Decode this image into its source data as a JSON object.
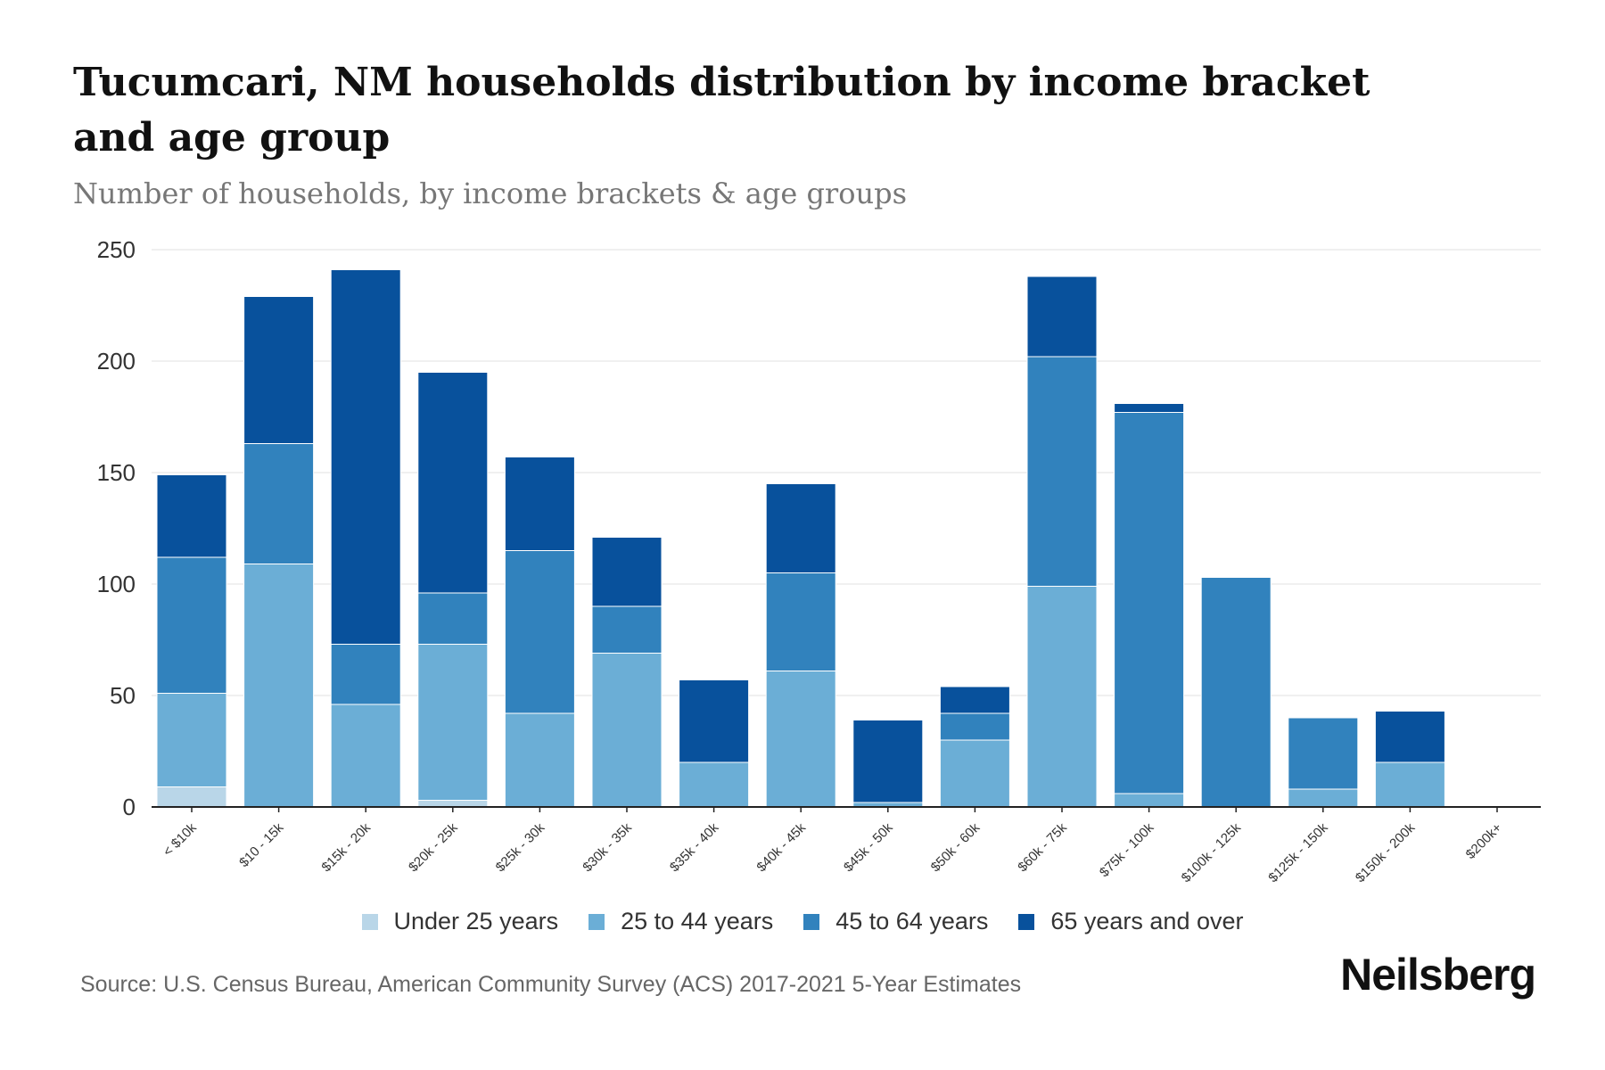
{
  "header": {
    "title": "Tucumcari, NM households distribution by income bracket and age group",
    "subtitle": "Number of households, by income brackets & age groups"
  },
  "footer": {
    "source": "Source: U.S. Census Bureau, American Community Survey (ACS) 2017-2021 5-Year Estimates",
    "brand": "Neilsberg"
  },
  "chart_data": {
    "type": "bar",
    "stacked": true,
    "title": "Tucumcari, NM households distribution by income bracket and age group",
    "subtitle": "Number of households, by income brackets & age groups",
    "xlabel": "",
    "ylabel": "",
    "ylim": [
      0,
      250
    ],
    "yticks": [
      0,
      50,
      100,
      150,
      200,
      250
    ],
    "grid": true,
    "legend_position": "bottom",
    "categories": [
      "< $10k",
      "$10 - 15k",
      "$15k - 20k",
      "$20k - 25k",
      "$25k - 30k",
      "$30k - 35k",
      "$35k - 40k",
      "$40k - 45k",
      "$45k - 50k",
      "$50k - 60k",
      "$60k - 75k",
      "$75k - 100k",
      "$100k - 125k",
      "$125k - 150k",
      "$150k - 200k",
      "$200k+"
    ],
    "series": [
      {
        "name": "Under 25 years",
        "color": "#b9d6e8",
        "values": [
          9,
          0,
          0,
          3,
          0,
          0,
          0,
          0,
          0,
          0,
          0,
          0,
          0,
          0,
          0,
          0
        ]
      },
      {
        "name": "25 to 44 years",
        "color": "#6baed6",
        "values": [
          42,
          109,
          46,
          70,
          42,
          69,
          20,
          61,
          2,
          30,
          99,
          6,
          0,
          8,
          20,
          0
        ]
      },
      {
        "name": "45 to 64 years",
        "color": "#3182bd",
        "values": [
          61,
          54,
          27,
          23,
          73,
          21,
          0,
          44,
          0,
          12,
          103,
          171,
          103,
          32,
          0,
          0
        ]
      },
      {
        "name": "65 years and over",
        "color": "#08519c",
        "values": [
          37,
          66,
          168,
          99,
          42,
          31,
          37,
          40,
          37,
          12,
          36,
          4,
          0,
          0,
          23,
          0
        ]
      }
    ]
  }
}
